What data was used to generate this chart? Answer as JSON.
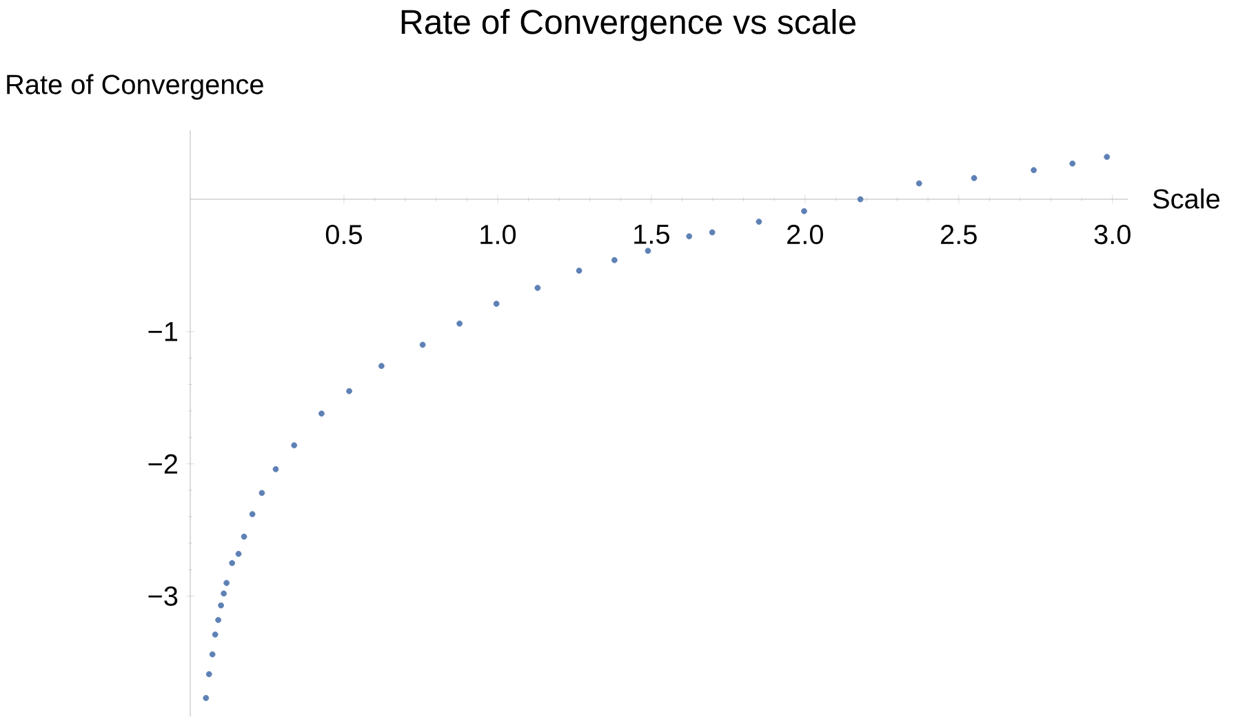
{
  "chart_data": {
    "type": "scatter",
    "title": "Rate of Convergence vs scale",
    "xlabel": "Scale",
    "ylabel": "Rate of Convergence",
    "marker": "circle",
    "xlim": [
      0,
      3.05
    ],
    "ylim": [
      -3.91,
      0.52
    ],
    "xticks": [
      0.5,
      {
        "value": 1,
        "label": "1.0"
      },
      1.5,
      {
        "value": 2,
        "label": "2.0"
      },
      2.5,
      {
        "value": 3,
        "label": "3.0"
      }
    ],
    "yticks": [
      {
        "value": -3,
        "label": "−3"
      },
      {
        "value": -2,
        "label": "−2"
      },
      {
        "value": -1,
        "label": "−1"
      }
    ],
    "series": [
      {
        "color": "#5e81b5",
        "x": [
          0.051,
          0.061,
          0.072,
          0.081,
          0.091,
          0.1,
          0.109,
          0.118,
          0.136,
          0.157,
          0.175,
          0.202,
          0.233,
          0.278,
          0.338,
          0.427,
          0.517,
          0.622,
          0.756,
          0.876,
          0.996,
          1.13,
          1.265,
          1.38,
          1.489,
          1.623,
          1.698,
          1.85,
          1.997,
          2.18,
          2.371,
          2.55,
          2.744,
          2.87,
          2.982
        ],
        "values": [
          -3.77,
          -3.59,
          -3.44,
          -3.29,
          -3.18,
          -3.07,
          -2.98,
          -2.9,
          -2.75,
          -2.68,
          -2.55,
          -2.38,
          -2.22,
          -2.04,
          -1.86,
          -1.62,
          -1.45,
          -1.26,
          -1.1,
          -0.94,
          -0.79,
          -0.67,
          -0.54,
          -0.46,
          -0.39,
          -0.28,
          -0.25,
          -0.17,
          -0.09,
          0.0,
          0.12,
          0.16,
          0.22,
          0.27,
          0.32
        ]
      }
    ]
  }
}
